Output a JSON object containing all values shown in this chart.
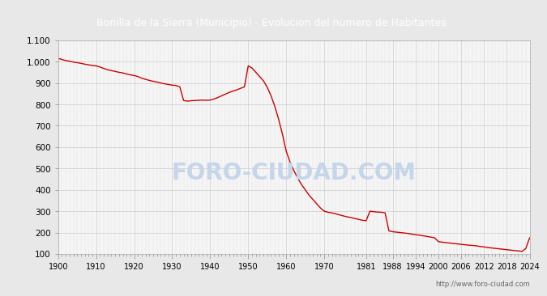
{
  "title": "Bonilla de la Sierra (Municipio) - Evolucion del numero de Habitantes",
  "title_color": "white",
  "title_bg_color": "#4a7fc1",
  "background_color": "#e8e8e8",
  "plot_bg_color": "#f5f5f5",
  "line_color": "#cc0000",
  "watermark": "FORO-CIUDAD.COM",
  "watermark_color": "#c5d5ea",
  "url": "http://www.foro-ciudad.com",
  "ylim": [
    100,
    1100
  ],
  "yticks": [
    100,
    200,
    300,
    400,
    500,
    600,
    700,
    800,
    900,
    1000,
    1100
  ],
  "ytick_labels": [
    "100",
    "200",
    "300",
    "400",
    "500",
    "600",
    "700",
    "800",
    "900",
    "1.000",
    "1.100"
  ],
  "years": [
    1900,
    1901,
    1902,
    1903,
    1904,
    1905,
    1906,
    1907,
    1908,
    1909,
    1910,
    1911,
    1912,
    1913,
    1914,
    1915,
    1916,
    1917,
    1918,
    1919,
    1920,
    1921,
    1922,
    1923,
    1924,
    1925,
    1926,
    1927,
    1928,
    1929,
    1930,
    1931,
    1932,
    1933,
    1934,
    1935,
    1936,
    1937,
    1938,
    1939,
    1940,
    1941,
    1942,
    1943,
    1944,
    1945,
    1946,
    1947,
    1948,
    1949,
    1950,
    1951,
    1952,
    1953,
    1954,
    1955,
    1956,
    1957,
    1958,
    1959,
    1960,
    1961,
    1962,
    1963,
    1964,
    1965,
    1966,
    1967,
    1968,
    1969,
    1970,
    1971,
    1972,
    1973,
    1974,
    1975,
    1976,
    1977,
    1978,
    1979,
    1980,
    1981,
    1982,
    1983,
    1984,
    1985,
    1986,
    1987,
    1988,
    1989,
    1990,
    1991,
    1992,
    1993,
    1994,
    1995,
    1996,
    1997,
    1998,
    1999,
    2000,
    2001,
    2002,
    2003,
    2004,
    2005,
    2006,
    2007,
    2008,
    2009,
    2010,
    2011,
    2012,
    2013,
    2014,
    2015,
    2016,
    2017,
    2018,
    2019,
    2020,
    2021,
    2022,
    2023,
    2024
  ],
  "population": [
    1015,
    1010,
    1005,
    1002,
    998,
    995,
    992,
    988,
    985,
    982,
    980,
    975,
    968,
    962,
    958,
    954,
    950,
    947,
    942,
    938,
    935,
    930,
    922,
    917,
    912,
    908,
    904,
    900,
    896,
    893,
    890,
    888,
    882,
    818,
    815,
    817,
    818,
    819,
    820,
    819,
    820,
    825,
    832,
    840,
    848,
    856,
    862,
    868,
    875,
    882,
    980,
    970,
    950,
    930,
    910,
    880,
    840,
    790,
    730,
    660,
    580,
    530,
    490,
    455,
    425,
    400,
    375,
    355,
    335,
    315,
    300,
    295,
    292,
    288,
    283,
    278,
    274,
    270,
    266,
    262,
    258,
    255,
    300,
    298,
    296,
    295,
    292,
    208,
    204,
    202,
    200,
    198,
    196,
    193,
    190,
    188,
    185,
    182,
    179,
    176,
    158,
    155,
    153,
    151,
    149,
    147,
    145,
    143,
    141,
    140,
    138,
    135,
    133,
    130,
    128,
    126,
    124,
    122,
    120,
    118,
    116,
    114,
    112,
    125,
    175
  ],
  "xtick_years": [
    1900,
    1910,
    1920,
    1930,
    1940,
    1950,
    1960,
    1970,
    1981,
    1988,
    1994,
    2000,
    2006,
    2012,
    2018,
    2024
  ]
}
